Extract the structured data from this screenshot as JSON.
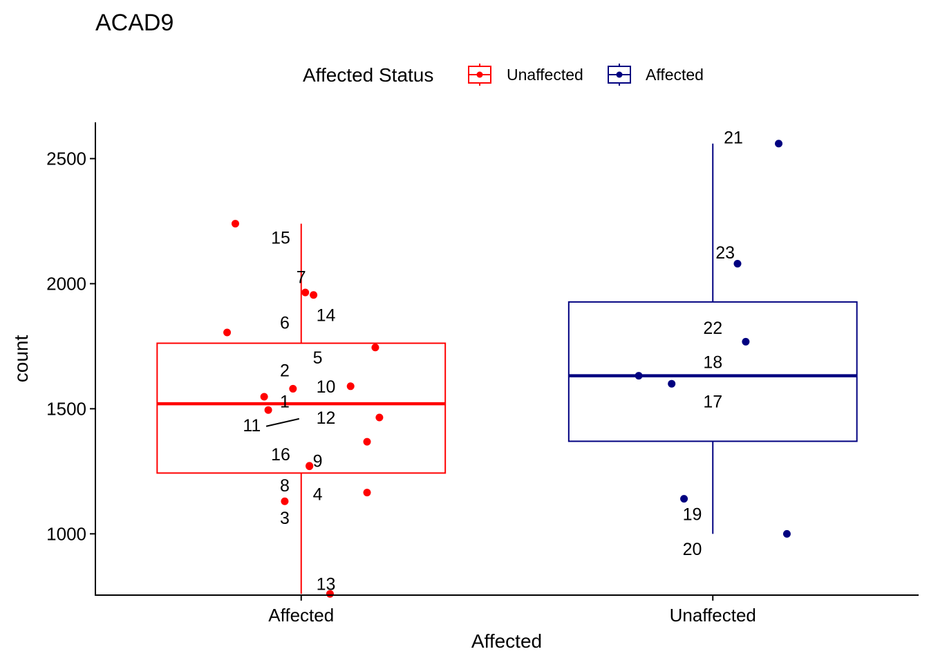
{
  "chart_data": {
    "type": "boxplot",
    "title": "ACAD9",
    "xlabel": "Affected",
    "ylabel": "count",
    "ylim": [
      755,
      2645
    ],
    "y_ticks": [
      1000,
      1500,
      2000,
      2500
    ],
    "categories": [
      "Affected",
      "Unaffected"
    ],
    "legend": {
      "title": "Affected Status",
      "position": "top",
      "entries": [
        {
          "label": "Unaffected",
          "color": "#ff0000"
        },
        {
          "label": "Affected",
          "color": "#000080"
        }
      ]
    },
    "boxes": [
      {
        "category": "Affected",
        "group": "Unaffected",
        "color": "#ff0000",
        "min": 760,
        "q1": 1243,
        "median": 1520,
        "q3": 1762,
        "max": 2240
      },
      {
        "category": "Unaffected",
        "group": "Affected",
        "color": "#000080",
        "min": 1000,
        "q1": 1370,
        "median": 1632,
        "q3": 1927,
        "max": 2560
      }
    ],
    "points": [
      {
        "id": "1",
        "category": "Affected",
        "jitter": -0.08,
        "y": 1495,
        "lx": -0.04,
        "ly": 1530
      },
      {
        "id": "2",
        "category": "Affected",
        "jitter": -0.02,
        "y": 1580,
        "lx": -0.04,
        "ly": 1655
      },
      {
        "id": "3",
        "category": "Affected",
        "jitter": -0.04,
        "y": 1130,
        "lx": -0.04,
        "ly": 1065
      },
      {
        "id": "4",
        "category": "Affected",
        "jitter": 0.16,
        "y": 1165,
        "lx": 0.04,
        "ly": 1160
      },
      {
        "id": "5",
        "category": "Affected",
        "jitter": 0.18,
        "y": 1745,
        "lx": 0.04,
        "ly": 1705
      },
      {
        "id": "6",
        "category": "Affected",
        "jitter": -0.18,
        "y": 1805,
        "lx": -0.04,
        "ly": 1845
      },
      {
        "id": "7",
        "category": "Affected",
        "jitter": 0.01,
        "y": 1965,
        "lx": 0.0,
        "ly": 2028
      },
      {
        "id": "8",
        "category": "Affected",
        "jitter": 0.02,
        "y": 1270,
        "lx": -0.04,
        "ly": 1195
      },
      {
        "id": "9",
        "category": "Affected",
        "jitter": 0.02,
        "y": 1272,
        "lx": 0.04,
        "ly": 1292
      },
      {
        "id": "10",
        "category": "Affected",
        "jitter": 0.12,
        "y": 1590,
        "lx": 0.06,
        "ly": 1590
      },
      {
        "id": "11",
        "category": "Affected",
        "jitter": -0.09,
        "y": 1548,
        "lx": -0.12,
        "ly": 1435,
        "segment": [
          -0.085,
          1430,
          -0.005,
          1460
        ]
      },
      {
        "id": "12",
        "category": "Affected",
        "jitter": 0.19,
        "y": 1465,
        "lx": 0.06,
        "ly": 1465
      },
      {
        "id": "13",
        "category": "Affected",
        "jitter": 0.07,
        "y": 760,
        "lx": 0.06,
        "ly": 800
      },
      {
        "id": "14",
        "category": "Affected",
        "jitter": 0.03,
        "y": 1955,
        "lx": 0.06,
        "ly": 1875
      },
      {
        "id": "15",
        "category": "Affected",
        "jitter": -0.16,
        "y": 2240,
        "lx": -0.05,
        "ly": 2185
      },
      {
        "id": "16",
        "category": "Affected",
        "jitter": 0.16,
        "y": 1368,
        "lx": -0.05,
        "ly": 1318
      },
      {
        "id": "17",
        "category": "Unaffected",
        "jitter": -0.1,
        "y": 1600,
        "lx": 0.0,
        "ly": 1530
      },
      {
        "id": "18",
        "category": "Unaffected",
        "jitter": -0.18,
        "y": 1632,
        "lx": 0.0,
        "ly": 1688
      },
      {
        "id": "19",
        "category": "Unaffected",
        "jitter": -0.07,
        "y": 1140,
        "lx": -0.05,
        "ly": 1080
      },
      {
        "id": "20",
        "category": "Unaffected",
        "jitter": 0.18,
        "y": 1000,
        "lx": -0.05,
        "ly": 940
      },
      {
        "id": "21",
        "category": "Unaffected",
        "jitter": 0.16,
        "y": 2560,
        "lx": 0.05,
        "ly": 2585
      },
      {
        "id": "22",
        "category": "Unaffected",
        "jitter": 0.08,
        "y": 1768,
        "lx": 0.0,
        "ly": 1825
      },
      {
        "id": "23",
        "category": "Unaffected",
        "jitter": 0.06,
        "y": 2080,
        "lx": 0.03,
        "ly": 2125
      }
    ]
  }
}
